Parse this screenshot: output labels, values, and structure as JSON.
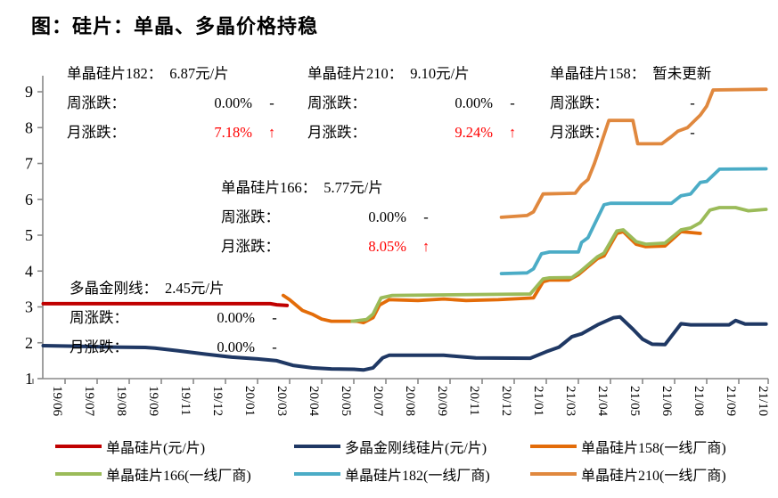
{
  "title": "图：硅片：单晶、多晶价格持稳",
  "chart_data": {
    "type": "line",
    "title": "图：硅片：单晶、多晶价格持稳",
    "xlabel": "",
    "ylabel": "",
    "ylim": [
      1,
      9
    ],
    "y_ticks": [
      1,
      2,
      3,
      4,
      5,
      6,
      7,
      8,
      9
    ],
    "grid": false,
    "legend_position": "bottom",
    "x_unit": "tick_index",
    "x_tick_labels": [
      "19/06",
      "19/07",
      "19/08",
      "19/09",
      "19/11",
      "19/12",
      "20/01",
      "20/03",
      "20/04",
      "20/05",
      "20/07",
      "20/08",
      "20/09",
      "20/11",
      "20/12",
      "21/01",
      "21/03",
      "21/04",
      "21/05",
      "21/06",
      "21/08",
      "21/09",
      "21/10"
    ],
    "series": [
      {
        "name": "单晶硅片(元/片)",
        "color": "#C00000",
        "width": 4,
        "points": [
          [
            -0.18,
            3.09
          ],
          [
            3,
            3.09
          ],
          [
            6.9,
            3.09
          ],
          [
            7.1,
            3.06
          ],
          [
            7.42,
            3.04
          ]
        ]
      },
      {
        "name": "多晶金刚线硅片(元/片)",
        "color": "#1F3864",
        "width": 4,
        "points": [
          [
            -0.18,
            1.92
          ],
          [
            1,
            1.9
          ],
          [
            2,
            1.88
          ],
          [
            3,
            1.87
          ],
          [
            3.3,
            1.85
          ],
          [
            4,
            1.78
          ],
          [
            4.9,
            1.68
          ],
          [
            5.7,
            1.6
          ],
          [
            6.5,
            1.55
          ],
          [
            7.1,
            1.5
          ],
          [
            7.6,
            1.37
          ],
          [
            8.2,
            1.3
          ],
          [
            8.8,
            1.27
          ],
          [
            9.5,
            1.26
          ],
          [
            9.8,
            1.24
          ],
          [
            10.1,
            1.3
          ],
          [
            10.4,
            1.58
          ],
          [
            10.6,
            1.65
          ],
          [
            12.3,
            1.65
          ],
          [
            12.7,
            1.62
          ],
          [
            13.3,
            1.58
          ],
          [
            15.0,
            1.57
          ],
          [
            15.5,
            1.75
          ],
          [
            15.9,
            1.88
          ],
          [
            16.3,
            2.17
          ],
          [
            16.6,
            2.25
          ],
          [
            17.1,
            2.5
          ],
          [
            17.6,
            2.7
          ],
          [
            17.8,
            2.72
          ],
          [
            18.2,
            2.38
          ],
          [
            18.5,
            2.1
          ],
          [
            18.8,
            1.96
          ],
          [
            19.2,
            1.95
          ],
          [
            19.7,
            2.53
          ],
          [
            20.0,
            2.5
          ],
          [
            21.2,
            2.5
          ],
          [
            21.4,
            2.62
          ],
          [
            21.7,
            2.52
          ],
          [
            22.35,
            2.52
          ]
        ]
      },
      {
        "name": "单晶硅片158(一线厂商)",
        "color": "#E36C09",
        "width": 3.8,
        "points": [
          [
            7.3,
            3.32
          ],
          [
            7.5,
            3.2
          ],
          [
            7.9,
            2.9
          ],
          [
            8.2,
            2.8
          ],
          [
            8.5,
            2.66
          ],
          [
            8.8,
            2.6
          ],
          [
            9.6,
            2.6
          ],
          [
            9.8,
            2.56
          ],
          [
            10.1,
            2.7
          ],
          [
            10.3,
            3.05
          ],
          [
            10.6,
            3.2
          ],
          [
            11.5,
            3.18
          ],
          [
            12.3,
            3.22
          ],
          [
            13.0,
            3.18
          ],
          [
            14.0,
            3.2
          ],
          [
            15.1,
            3.25
          ],
          [
            15.4,
            3.7
          ],
          [
            15.6,
            3.75
          ],
          [
            16.2,
            3.75
          ],
          [
            16.5,
            3.9
          ],
          [
            17.1,
            4.35
          ],
          [
            17.3,
            4.42
          ],
          [
            17.7,
            5.05
          ],
          [
            17.9,
            5.1
          ],
          [
            18.3,
            4.75
          ],
          [
            18.6,
            4.68
          ],
          [
            19.2,
            4.7
          ],
          [
            19.7,
            5.1
          ],
          [
            20.3,
            5.05
          ]
        ]
      },
      {
        "name": "单晶硅片166(一线厂商)",
        "color": "#9BBB59",
        "width": 3.8,
        "points": [
          [
            9.45,
            2.6
          ],
          [
            9.9,
            2.65
          ],
          [
            10.1,
            2.8
          ],
          [
            10.35,
            3.25
          ],
          [
            10.7,
            3.32
          ],
          [
            15.0,
            3.36
          ],
          [
            15.4,
            3.78
          ],
          [
            15.6,
            3.81
          ],
          [
            16.3,
            3.82
          ],
          [
            16.55,
            3.98
          ],
          [
            17.1,
            4.4
          ],
          [
            17.3,
            4.5
          ],
          [
            17.7,
            5.12
          ],
          [
            17.9,
            5.15
          ],
          [
            18.3,
            4.82
          ],
          [
            18.6,
            4.75
          ],
          [
            19.2,
            4.78
          ],
          [
            19.7,
            5.15
          ],
          [
            20.0,
            5.2
          ],
          [
            20.3,
            5.35
          ],
          [
            20.6,
            5.7
          ],
          [
            20.9,
            5.77
          ],
          [
            21.4,
            5.77
          ],
          [
            21.8,
            5.68
          ],
          [
            22.35,
            5.72
          ]
        ]
      },
      {
        "name": "单晶硅片182(一线厂商)",
        "color": "#4BACC6",
        "width": 3.8,
        "points": [
          [
            14.1,
            3.93
          ],
          [
            14.9,
            3.95
          ],
          [
            15.1,
            4.06
          ],
          [
            15.35,
            4.48
          ],
          [
            15.6,
            4.53
          ],
          [
            16.5,
            4.53
          ],
          [
            16.6,
            4.8
          ],
          [
            16.8,
            4.93
          ],
          [
            17.0,
            5.3
          ],
          [
            17.3,
            5.85
          ],
          [
            17.5,
            5.89
          ],
          [
            19.4,
            5.89
          ],
          [
            19.7,
            6.1
          ],
          [
            20.0,
            6.15
          ],
          [
            20.3,
            6.47
          ],
          [
            20.5,
            6.5
          ],
          [
            20.9,
            6.84
          ],
          [
            22.35,
            6.85
          ]
        ]
      },
      {
        "name": "单晶硅片210(一线厂商)",
        "color": "#E0883E",
        "width": 3.8,
        "points": [
          [
            14.1,
            5.5
          ],
          [
            14.9,
            5.55
          ],
          [
            15.1,
            5.65
          ],
          [
            15.4,
            6.15
          ],
          [
            16.4,
            6.17
          ],
          [
            16.6,
            6.4
          ],
          [
            16.8,
            6.55
          ],
          [
            17.0,
            7.0
          ],
          [
            17.1,
            7.26
          ],
          [
            17.45,
            8.2
          ],
          [
            18.2,
            8.2
          ],
          [
            18.35,
            7.55
          ],
          [
            19.1,
            7.55
          ],
          [
            19.4,
            7.75
          ],
          [
            19.6,
            7.9
          ],
          [
            19.9,
            8.0
          ],
          [
            20.3,
            8.35
          ],
          [
            20.5,
            8.6
          ],
          [
            20.7,
            9.05
          ],
          [
            22.35,
            9.07
          ]
        ]
      }
    ]
  },
  "annotations": [
    {
      "title_label": "单晶硅片182：",
      "title_value": "6.87元/片",
      "rows": [
        {
          "label": "周涨跌：",
          "value": "0.00%",
          "mark": "-",
          "red": false,
          "center": false
        },
        {
          "label": "月涨跌：",
          "value": "7.18%",
          "mark": "↑",
          "red": true,
          "center": false
        }
      ]
    },
    {
      "title_label": "单晶硅片210：",
      "title_value": "9.10元/片",
      "rows": [
        {
          "label": "周涨跌：",
          "value": "0.00%",
          "mark": "-",
          "red": false,
          "center": false
        },
        {
          "label": "月涨跌：",
          "value": "9.24%",
          "mark": "↑",
          "red": true,
          "center": false
        }
      ]
    },
    {
      "title_label": "单晶硅片158：",
      "title_value": "暂未更新",
      "rows": [
        {
          "label": "周涨跌：",
          "value": "-",
          "mark": "",
          "red": false,
          "center": true
        },
        {
          "label": "月涨跌：",
          "value": "-",
          "mark": "",
          "red": false,
          "center": true
        }
      ]
    },
    {
      "title_label": "单晶硅片166：",
      "title_value": "5.77元/片",
      "rows": [
        {
          "label": "周涨跌：",
          "value": "0.00%",
          "mark": "-",
          "red": false,
          "center": false
        },
        {
          "label": "月涨跌：",
          "value": "8.05%",
          "mark": "↑",
          "red": true,
          "center": false
        }
      ]
    },
    {
      "title_label": "多晶金刚线：",
      "title_value": "2.45元/片",
      "rows": [
        {
          "label": "周涨跌：",
          "value": "0.00%",
          "mark": "-",
          "red": false,
          "center": false
        },
        {
          "label": "月涨跌：",
          "value": "0.00%",
          "mark": "-",
          "red": false,
          "center": false
        }
      ]
    }
  ],
  "colors": {
    "axis": "#898989",
    "up_text": "#ff0000",
    "text": "#000000"
  }
}
